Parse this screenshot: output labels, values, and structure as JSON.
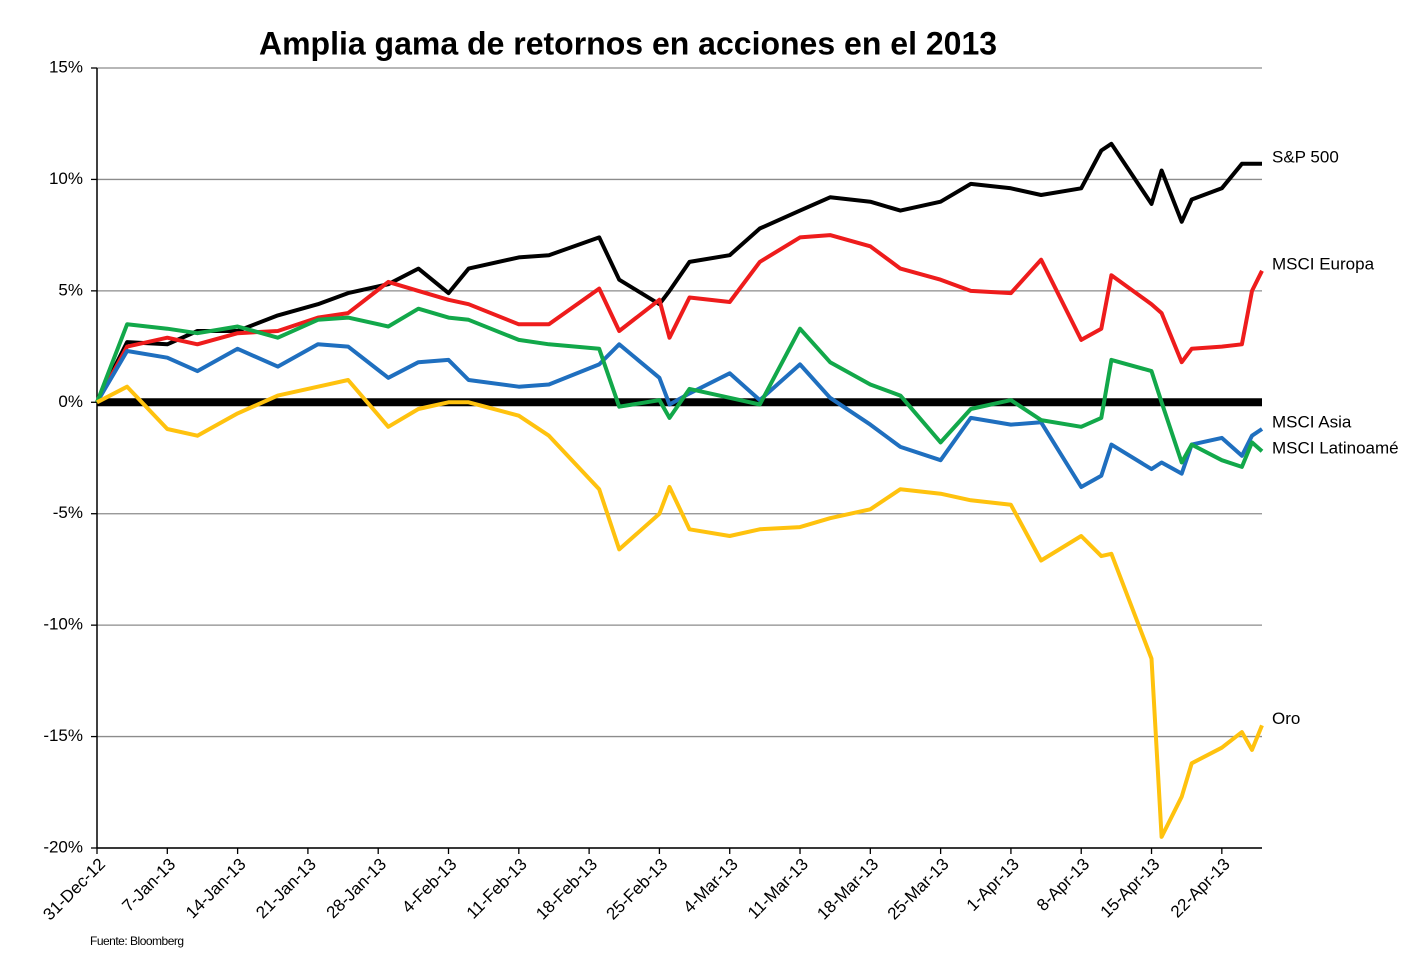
{
  "chart_data": {
    "type": "line",
    "title": "Amplia gama de retornos en acciones en el 2013",
    "source": "Fuente: Bloomberg",
    "x": [
      "31-Dec-12",
      "3-Jan-13",
      "7-Jan-13",
      "10-Jan-13",
      "14-Jan-13",
      "18-Jan-13",
      "22-Jan-13",
      "25-Jan-13",
      "29-Jan-13",
      "1-Feb-13",
      "4-Feb-13",
      "6-Feb-13",
      "11-Feb-13",
      "14-Feb-13",
      "19-Feb-13",
      "21-Feb-13",
      "25-Feb-13",
      "26-Feb-13",
      "28-Feb-13",
      "4-Mar-13",
      "7-Mar-13",
      "11-Mar-13",
      "14-Mar-13",
      "18-Mar-13",
      "21-Mar-13",
      "25-Mar-13",
      "28-Mar-13",
      "1-Apr-13",
      "4-Apr-13",
      "8-Apr-13",
      "10-Apr-13",
      "11-Apr-13",
      "15-Apr-13",
      "16-Apr-13",
      "18-Apr-13",
      "19-Apr-13",
      "22-Apr-13",
      "24-Apr-13",
      "25-Apr-13",
      "26-Apr-13"
    ],
    "series": [
      {
        "name": "S&P 500",
        "color": "#000000",
        "values": [
          0,
          2.7,
          2.6,
          3.2,
          3.2,
          3.9,
          4.4,
          4.9,
          5.3,
          6.0,
          4.9,
          6.0,
          6.5,
          6.6,
          7.4,
          5.5,
          4.4,
          5.0,
          6.3,
          6.6,
          7.8,
          8.6,
          9.2,
          9.0,
          8.6,
          9.0,
          9.8,
          9.6,
          9.3,
          9.6,
          11.3,
          11.6,
          8.9,
          10.4,
          8.1,
          9.1,
          9.6,
          10.7,
          10.7,
          10.7
        ]
      },
      {
        "name": "MSCI Europa",
        "color": "#ee1c1c",
        "values": [
          0,
          2.5,
          2.9,
          2.6,
          3.1,
          3.2,
          3.8,
          4.0,
          5.4,
          5.0,
          4.6,
          4.4,
          3.5,
          3.5,
          5.1,
          3.2,
          4.6,
          2.9,
          4.7,
          4.5,
          6.3,
          7.4,
          7.5,
          7.0,
          6.0,
          5.5,
          5.0,
          4.9,
          6.4,
          2.8,
          3.3,
          5.7,
          4.4,
          4.0,
          1.8,
          2.4,
          2.5,
          2.6,
          5.0,
          5.9
        ]
      },
      {
        "name": "MSCI Asia",
        "color": "#1f6fbf",
        "values": [
          0,
          2.3,
          2.0,
          1.4,
          2.4,
          1.6,
          2.6,
          2.5,
          1.1,
          1.8,
          1.9,
          1.0,
          0.7,
          0.8,
          1.7,
          2.6,
          1.1,
          -0.1,
          0.4,
          1.3,
          0.1,
          1.7,
          0.2,
          -1.0,
          -2.0,
          -2.6,
          -0.7,
          -1.0,
          -0.9,
          -3.8,
          -3.3,
          -1.9,
          -3.0,
          -2.7,
          -3.2,
          -1.9,
          -1.6,
          -2.4,
          -1.5,
          -1.2
        ]
      },
      {
        "name": "MSCI Latinoamé",
        "color": "#12a84a",
        "values": [
          0,
          3.5,
          3.3,
          3.1,
          3.4,
          2.9,
          3.7,
          3.8,
          3.4,
          4.2,
          3.8,
          3.7,
          2.8,
          2.6,
          2.4,
          -0.2,
          0.1,
          -0.7,
          0.6,
          0.2,
          -0.1,
          3.3,
          1.8,
          0.8,
          0.3,
          -1.8,
          -0.3,
          0.1,
          -0.8,
          -1.1,
          -0.7,
          1.9,
          1.4,
          0.0,
          -2.7,
          -1.9,
          -2.6,
          -2.9,
          -1.8,
          -2.2
        ]
      },
      {
        "name": "Oro",
        "color": "#ffc20e",
        "values": [
          0,
          0.7,
          -1.2,
          -1.5,
          -0.5,
          0.3,
          0.7,
          1.0,
          -1.1,
          -0.3,
          0.0,
          0.0,
          -0.6,
          -1.5,
          -3.9,
          -6.6,
          -5.0,
          -3.8,
          -5.7,
          -6.0,
          -5.7,
          -5.6,
          -5.2,
          -4.8,
          -3.9,
          -4.1,
          -4.4,
          -4.6,
          -7.1,
          -6.0,
          -6.9,
          -6.8,
          -11.5,
          -19.5,
          -17.7,
          -16.2,
          -15.5,
          -14.8,
          -15.6,
          -14.5
        ]
      }
    ],
    "xlim": [
      "31-Dec-12",
      "26-Apr-13"
    ],
    "xticks": [
      "31-Dec-12",
      "7-Jan-13",
      "14-Jan-13",
      "21-Jan-13",
      "28-Jan-13",
      "4-Feb-13",
      "11-Feb-13",
      "18-Feb-13",
      "25-Feb-13",
      "4-Mar-13",
      "11-Mar-13",
      "18-Mar-13",
      "25-Mar-13",
      "1-Apr-13",
      "8-Apr-13",
      "15-Apr-13",
      "22-Apr-13"
    ],
    "ylim": [
      -20,
      15
    ],
    "yticks": [
      {
        "value": -20,
        "label": "-20%"
      },
      {
        "value": -15,
        "label": "-15%"
      },
      {
        "value": -10,
        "label": "-10%"
      },
      {
        "value": -5,
        "label": "-5%"
      },
      {
        "value": 0,
        "label": "0%"
      },
      {
        "value": 5,
        "label": "5%"
      },
      {
        "value": 10,
        "label": "10%"
      },
      {
        "value": 15,
        "label": "15%"
      }
    ],
    "grid": true
  }
}
